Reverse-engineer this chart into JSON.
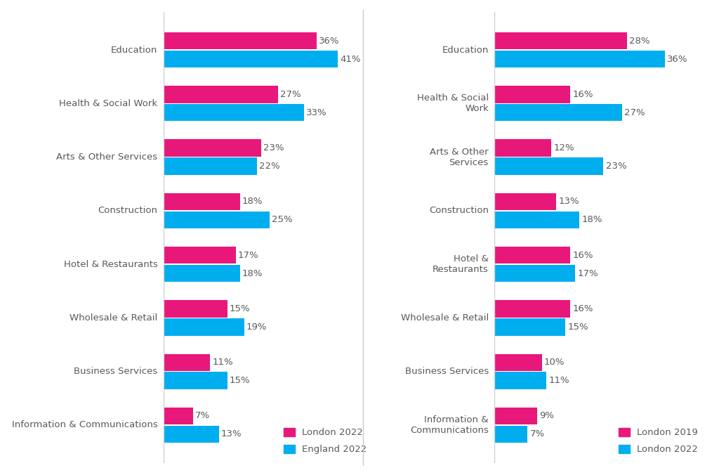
{
  "left_chart": {
    "categories": [
      "Education",
      "Health & Social Work",
      "Arts & Other Services",
      "Construction",
      "Hotel & Restaurants",
      "Wholesale & Retail",
      "Business Services",
      "Information & Communications"
    ],
    "series1_label": "London 2022",
    "series1_color": "#E8187A",
    "series1_values": [
      36,
      27,
      23,
      18,
      17,
      15,
      11,
      7
    ],
    "series2_label": "England 2022",
    "series2_color": "#00AEEF",
    "series2_values": [
      41,
      33,
      22,
      25,
      18,
      19,
      15,
      13
    ]
  },
  "right_chart": {
    "categories": [
      "Education",
      "Health & Social\nWork",
      "Arts & Other\nServices",
      "Construction",
      "Hotel &\nRestaurants",
      "Wholesale & Retail",
      "Business Services",
      "Information &\nCommunications"
    ],
    "series1_label": "London 2019",
    "series1_color": "#E8187A",
    "series1_values": [
      28,
      16,
      12,
      13,
      16,
      16,
      10,
      9
    ],
    "series2_label": "London 2022",
    "series2_color": "#00AEEF",
    "series2_values": [
      36,
      27,
      23,
      18,
      17,
      15,
      11,
      7
    ]
  },
  "bar_height": 0.32,
  "bar_gap": 0.02,
  "label_fontsize": 9.5,
  "tick_fontsize": 9.5,
  "legend_fontsize": 9.5,
  "bg_color": "#FFFFFF",
  "text_color": "#595959",
  "divider_color": "#CCCCCC",
  "xlim_left": 50,
  "xlim_right": 45
}
